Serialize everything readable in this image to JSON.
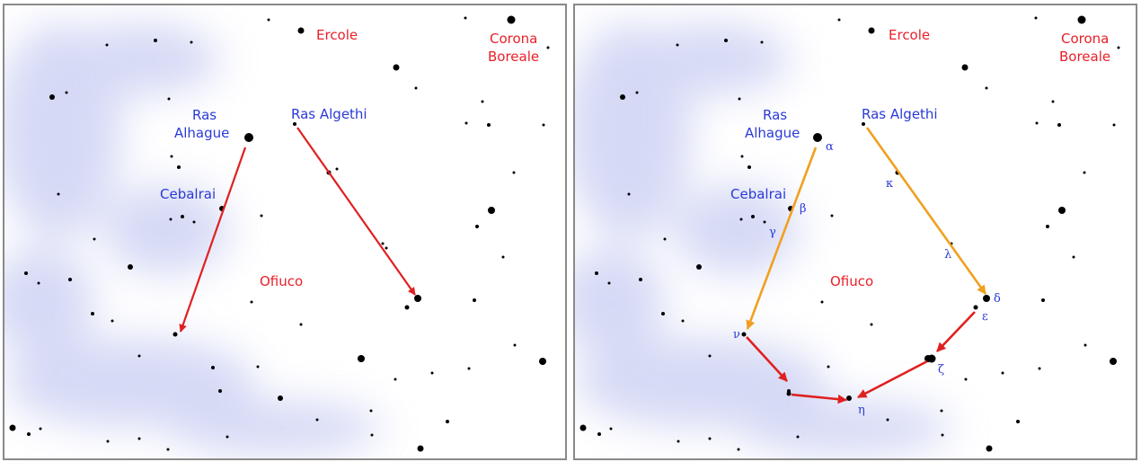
{
  "labels": {
    "ercole": "Ercole",
    "corona_line1": "Corona",
    "corona_line2": "Boreale",
    "ras_alhague_line1": "Ras",
    "ras_alhague_line2": "Alhague",
    "ras_algethi": "Ras Algethi",
    "cebalrai": "Cebalrai",
    "ofiuco": "Ofiuco"
  },
  "greek": {
    "alpha": "α",
    "beta": "β",
    "gamma": "γ",
    "kappa": "κ",
    "lambda": "λ",
    "delta": "δ",
    "epsilon": "ε",
    "zeta": "ζ",
    "eta": "η",
    "nu": "ν"
  },
  "colors": {
    "constellation_label": "#e8202a",
    "star_name_label": "#2a3ad6",
    "arrow_red": "#e02020",
    "arrow_orange": "#f0a020",
    "star": "#000000",
    "milky_way": "#c8cdf2",
    "border": "#8a8a8a"
  }
}
